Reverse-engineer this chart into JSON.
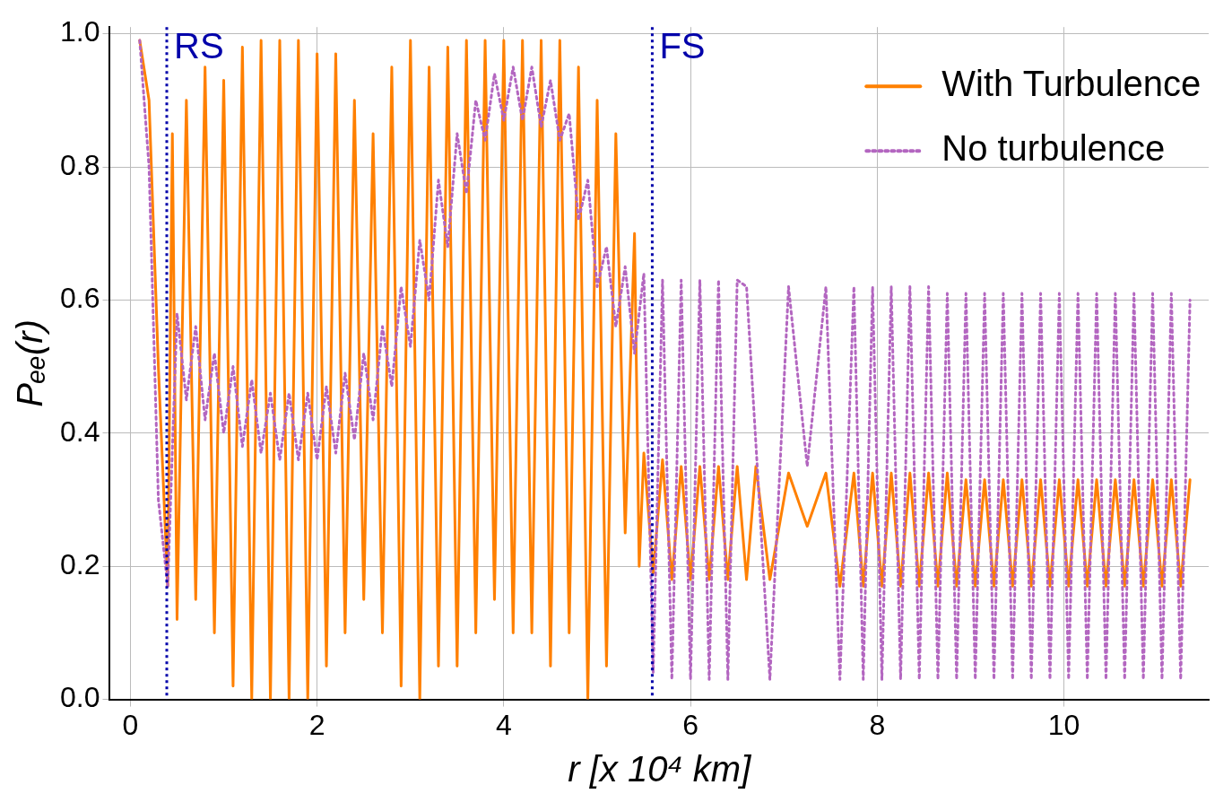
{
  "chart_data": {
    "type": "line",
    "xlabel": "r [x 10⁴ km]",
    "ylabel": "Pₑₑ(r)",
    "xlim": [
      -0.22,
      11.55
    ],
    "ylim": [
      0,
      1.01
    ],
    "xticks": [
      0,
      2,
      4,
      6,
      8,
      10
    ],
    "yticks": [
      {
        "value": 0,
        "label": "0.0"
      },
      {
        "value": 0.2,
        "label": "0.2"
      },
      {
        "value": 0.4,
        "label": "0.4"
      },
      {
        "value": 0.6,
        "label": "0.6"
      },
      {
        "value": 0.8,
        "label": "0.8"
      },
      {
        "value": 1,
        "label": "1.0"
      }
    ],
    "grid": true,
    "legend": "top right",
    "marker": "none",
    "ref_lines": [
      {
        "axis": "x",
        "value": 0.39,
        "label": "RS",
        "color": "#0000aa",
        "line_style": "dotted"
      },
      {
        "axis": "x",
        "value": 5.59,
        "label": "FS",
        "color": "#0000aa",
        "line_style": "dotted"
      }
    ],
    "series": [
      {
        "name": "With Turbulence",
        "color": "#ff8000",
        "line_style": "solid",
        "x": [
          0.1,
          0.2,
          0.3,
          0.4,
          0.45,
          0.5,
          0.6,
          0.7,
          0.8,
          0.9,
          1.0,
          1.1,
          1.2,
          1.3,
          1.4,
          1.5,
          1.6,
          1.7,
          1.8,
          1.9,
          2.0,
          2.1,
          2.2,
          2.3,
          2.4,
          2.5,
          2.6,
          2.7,
          2.8,
          2.9,
          3.0,
          3.1,
          3.2,
          3.3,
          3.4,
          3.5,
          3.6,
          3.7,
          3.8,
          3.9,
          4.0,
          4.1,
          4.2,
          4.3,
          4.4,
          4.5,
          4.6,
          4.7,
          4.8,
          4.9,
          5.0,
          5.1,
          5.2,
          5.3,
          5.4,
          5.45,
          5.5,
          5.6,
          5.7,
          5.8,
          5.9,
          6.0,
          6.1,
          6.2,
          6.3,
          6.4,
          6.5,
          6.6,
          6.7,
          6.85,
          7.05,
          7.25,
          7.45,
          7.6,
          7.75,
          7.85,
          7.95,
          8.05,
          8.15,
          8.25,
          8.35,
          8.45,
          8.55,
          8.65,
          8.75,
          8.85,
          8.95,
          9.05,
          9.15,
          9.25,
          9.35,
          9.45,
          9.55,
          9.65,
          9.75,
          9.85,
          9.95,
          10.05,
          10.15,
          10.25,
          10.35,
          10.45,
          10.55,
          10.65,
          10.75,
          10.85,
          10.95,
          11.05,
          11.15,
          11.25,
          11.35
        ],
        "values": [
          0.99,
          0.9,
          0.5,
          0.17,
          0.85,
          0.12,
          0.9,
          0.15,
          0.95,
          0.1,
          0.93,
          0.02,
          0.98,
          0.0,
          0.99,
          0.0,
          0.99,
          0.0,
          0.99,
          0.0,
          0.97,
          0.05,
          0.97,
          0.1,
          0.9,
          0.15,
          0.85,
          0.1,
          0.95,
          0.02,
          0.99,
          0.0,
          0.95,
          0.05,
          0.98,
          0.05,
          0.99,
          0.1,
          0.99,
          0.15,
          0.99,
          0.1,
          0.99,
          0.1,
          0.99,
          0.05,
          0.99,
          0.1,
          0.95,
          0.0,
          0.9,
          0.05,
          0.85,
          0.25,
          0.7,
          0.2,
          0.37,
          0.19,
          0.36,
          0.18,
          0.35,
          0.18,
          0.35,
          0.18,
          0.35,
          0.18,
          0.35,
          0.18,
          0.35,
          0.18,
          0.34,
          0.26,
          0.34,
          0.17,
          0.34,
          0.17,
          0.34,
          0.17,
          0.34,
          0.17,
          0.34,
          0.17,
          0.34,
          0.17,
          0.34,
          0.17,
          0.33,
          0.17,
          0.33,
          0.17,
          0.33,
          0.17,
          0.33,
          0.17,
          0.33,
          0.17,
          0.33,
          0.17,
          0.33,
          0.17,
          0.33,
          0.17,
          0.33,
          0.17,
          0.33,
          0.17,
          0.33,
          0.17,
          0.33,
          0.17,
          0.33
        ]
      },
      {
        "name": "No turbulence",
        "color": "#b366c0",
        "line_style": "dotted",
        "x": [
          0.1,
          0.2,
          0.3,
          0.4,
          0.5,
          0.6,
          0.7,
          0.8,
          0.9,
          1.0,
          1.1,
          1.2,
          1.3,
          1.4,
          1.5,
          1.6,
          1.7,
          1.8,
          1.9,
          2.0,
          2.1,
          2.2,
          2.3,
          2.4,
          2.5,
          2.6,
          2.7,
          2.8,
          2.9,
          3.0,
          3.1,
          3.2,
          3.3,
          3.4,
          3.5,
          3.6,
          3.7,
          3.8,
          3.9,
          4.0,
          4.1,
          4.2,
          4.3,
          4.4,
          4.5,
          4.6,
          4.7,
          4.8,
          4.9,
          5.0,
          5.1,
          5.2,
          5.3,
          5.4,
          5.5,
          5.6,
          5.7,
          5.8,
          5.9,
          6.0,
          6.1,
          6.2,
          6.3,
          6.4,
          6.5,
          6.6,
          6.85,
          7.05,
          7.25,
          7.45,
          7.6,
          7.75,
          7.85,
          7.95,
          8.05,
          8.15,
          8.25,
          8.35,
          8.45,
          8.55,
          8.65,
          8.75,
          8.85,
          8.95,
          9.05,
          9.15,
          9.25,
          9.35,
          9.45,
          9.55,
          9.65,
          9.75,
          9.85,
          9.95,
          10.05,
          10.15,
          10.25,
          10.35,
          10.45,
          10.55,
          10.65,
          10.75,
          10.85,
          10.95,
          11.05,
          11.15,
          11.25,
          11.35
        ],
        "values": [
          0.99,
          0.8,
          0.3,
          0.17,
          0.58,
          0.45,
          0.56,
          0.42,
          0.52,
          0.4,
          0.5,
          0.38,
          0.48,
          0.37,
          0.46,
          0.36,
          0.46,
          0.36,
          0.46,
          0.36,
          0.47,
          0.37,
          0.49,
          0.39,
          0.52,
          0.42,
          0.56,
          0.47,
          0.62,
          0.53,
          0.69,
          0.6,
          0.78,
          0.68,
          0.85,
          0.76,
          0.9,
          0.84,
          0.94,
          0.87,
          0.95,
          0.87,
          0.95,
          0.86,
          0.93,
          0.84,
          0.88,
          0.72,
          0.78,
          0.62,
          0.68,
          0.56,
          0.65,
          0.52,
          0.64,
          0.04,
          0.63,
          0.03,
          0.63,
          0.03,
          0.63,
          0.03,
          0.63,
          0.03,
          0.63,
          0.62,
          0.03,
          0.62,
          0.35,
          0.62,
          0.03,
          0.62,
          0.03,
          0.62,
          0.03,
          0.62,
          0.03,
          0.62,
          0.03,
          0.62,
          0.03,
          0.61,
          0.03,
          0.61,
          0.03,
          0.61,
          0.03,
          0.61,
          0.03,
          0.61,
          0.03,
          0.61,
          0.03,
          0.61,
          0.03,
          0.61,
          0.03,
          0.61,
          0.03,
          0.61,
          0.03,
          0.61,
          0.03,
          0.61,
          0.03,
          0.61,
          0.03,
          0.6
        ]
      }
    ]
  }
}
